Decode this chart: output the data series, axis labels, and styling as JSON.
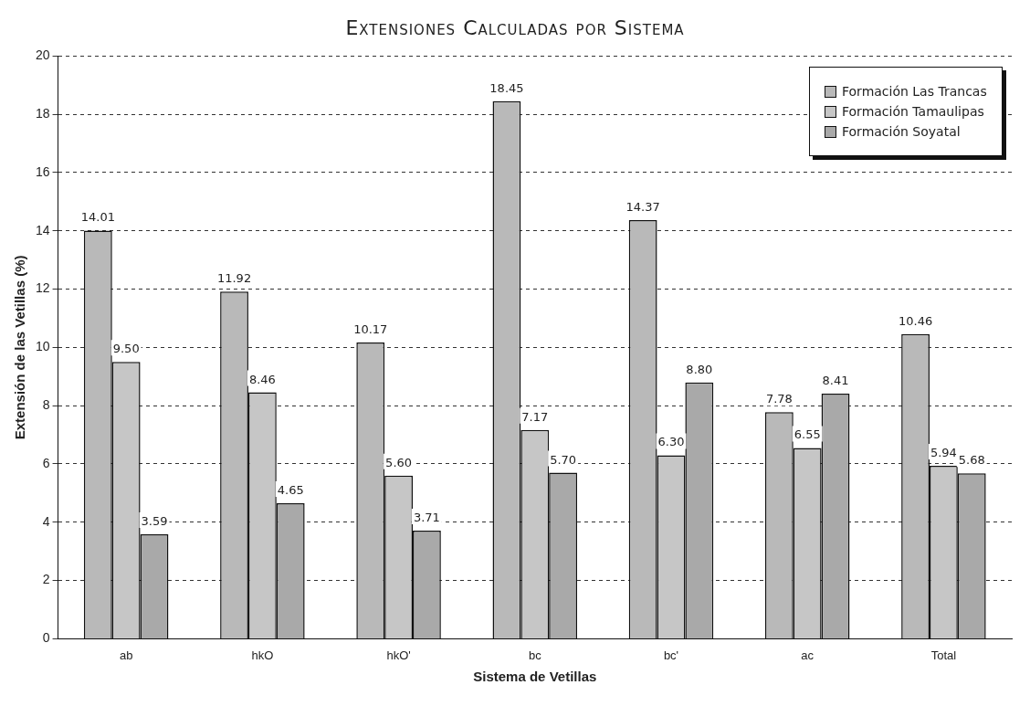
{
  "chart_data": {
    "type": "bar",
    "title": "Extensiones Calculadas por Sistema",
    "xlabel": "Sistema de Vetillas",
    "ylabel": "Extensión de las Vetillas (%)",
    "categories": [
      "ab",
      "hkO",
      "hkO'",
      "bc",
      "bc'",
      "ac",
      "Total"
    ],
    "series": [
      {
        "name": "Formación Las Trancas",
        "color": "#b9b9b9",
        "values": [
          14.01,
          11.92,
          10.17,
          18.45,
          14.37,
          7.78,
          10.46
        ],
        "value_labels": [
          "14.01",
          "11.92",
          "10.17",
          "18.45",
          "14.37",
          "7.78",
          "10.46"
        ]
      },
      {
        "name": "Formación Tamaulipas",
        "color": "#c6c6c6",
        "values": [
          9.5,
          8.46,
          5.6,
          7.17,
          6.3,
          6.55,
          5.94
        ],
        "value_labels": [
          "9.50",
          "8.46",
          "5.60",
          "7.17",
          "6.30",
          "6.55",
          "5.94"
        ]
      },
      {
        "name": "Formación Soyatal",
        "color": "#a9a9a9",
        "values": [
          3.59,
          4.65,
          3.71,
          5.7,
          8.8,
          8.41,
          5.68
        ],
        "value_labels": [
          "3.59",
          "4.65",
          "3.71",
          "5.70",
          "8.80",
          "8.41",
          "5.68"
        ]
      }
    ],
    "ylim": [
      0,
      20
    ],
    "yticks": [
      0,
      2,
      4,
      6,
      8,
      10,
      12,
      14,
      16,
      18,
      20
    ],
    "grid": "y",
    "legend": "top right"
  }
}
